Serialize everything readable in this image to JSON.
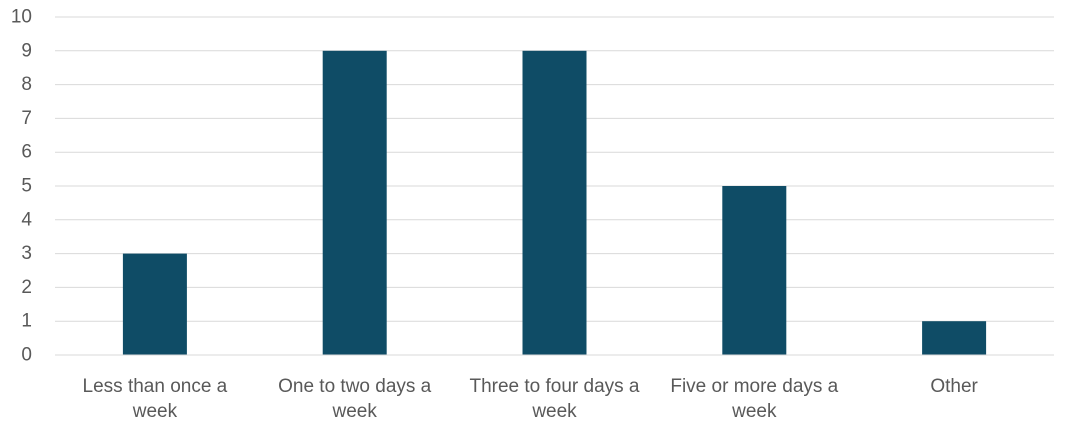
{
  "chart_data": {
    "type": "bar",
    "title": "",
    "xlabel": "",
    "ylabel": "",
    "categories": [
      [
        "Less than once a",
        "week"
      ],
      [
        "One to two days a",
        "week"
      ],
      [
        "Three to four days a",
        "week"
      ],
      [
        "Five or more days a",
        "week"
      ],
      [
        "Other"
      ]
    ],
    "values": [
      3,
      9,
      9,
      5,
      1
    ],
    "ylim": [
      0,
      10
    ],
    "yticks": [
      0,
      1,
      2,
      3,
      4,
      5,
      6,
      7,
      8,
      9,
      10
    ],
    "grid": true,
    "legend": "none",
    "bar_color": "#0f4c66"
  }
}
